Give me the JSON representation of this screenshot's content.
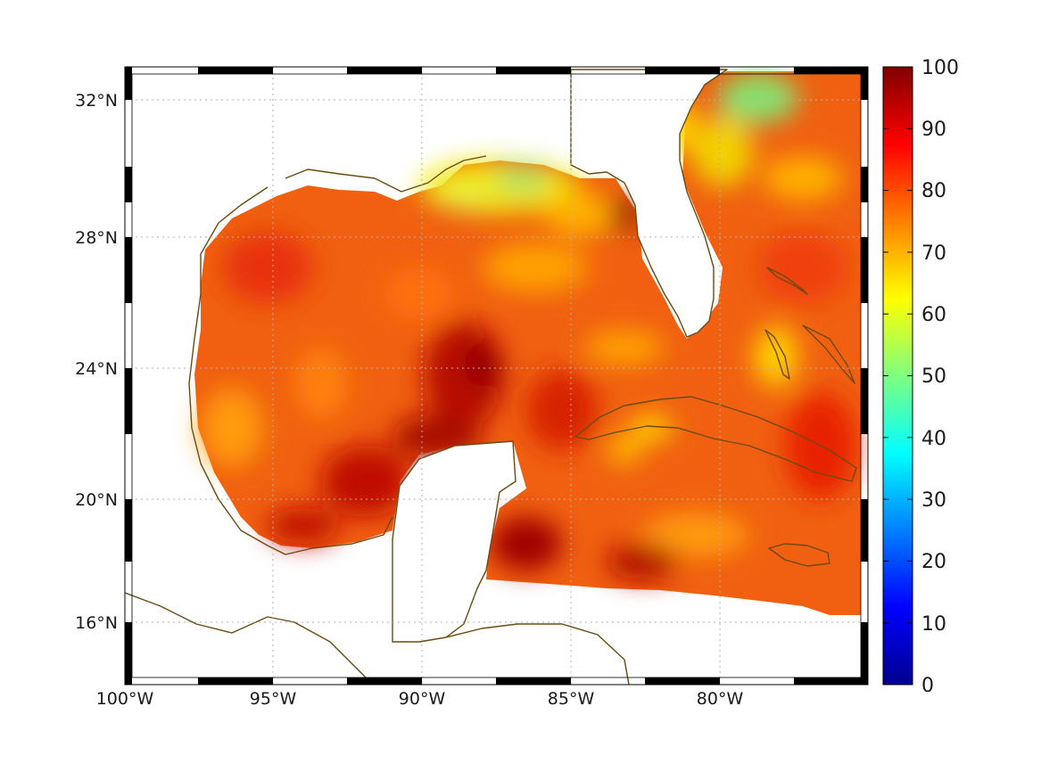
{
  "map": {
    "region": "Gulf of Mexico / Caribbean",
    "lon_range": [
      -100,
      -75
    ],
    "lat_range": [
      14,
      33
    ],
    "land_color": "#ffffff",
    "coast_color": "#6b4a10",
    "grid": true,
    "x_ticks": [
      "100°W",
      "95°W",
      "90°W",
      "85°W",
      "80°W"
    ],
    "y_ticks": [
      "32°N",
      "28°N",
      "24°N",
      "20°N",
      "16°N"
    ]
  },
  "colorbar": {
    "colormap": "jet",
    "min": 0,
    "max": 100,
    "tick_labels": [
      "100",
      "90",
      "80",
      "70",
      "60",
      "50",
      "40",
      "30",
      "20",
      "10",
      "0"
    ]
  }
}
